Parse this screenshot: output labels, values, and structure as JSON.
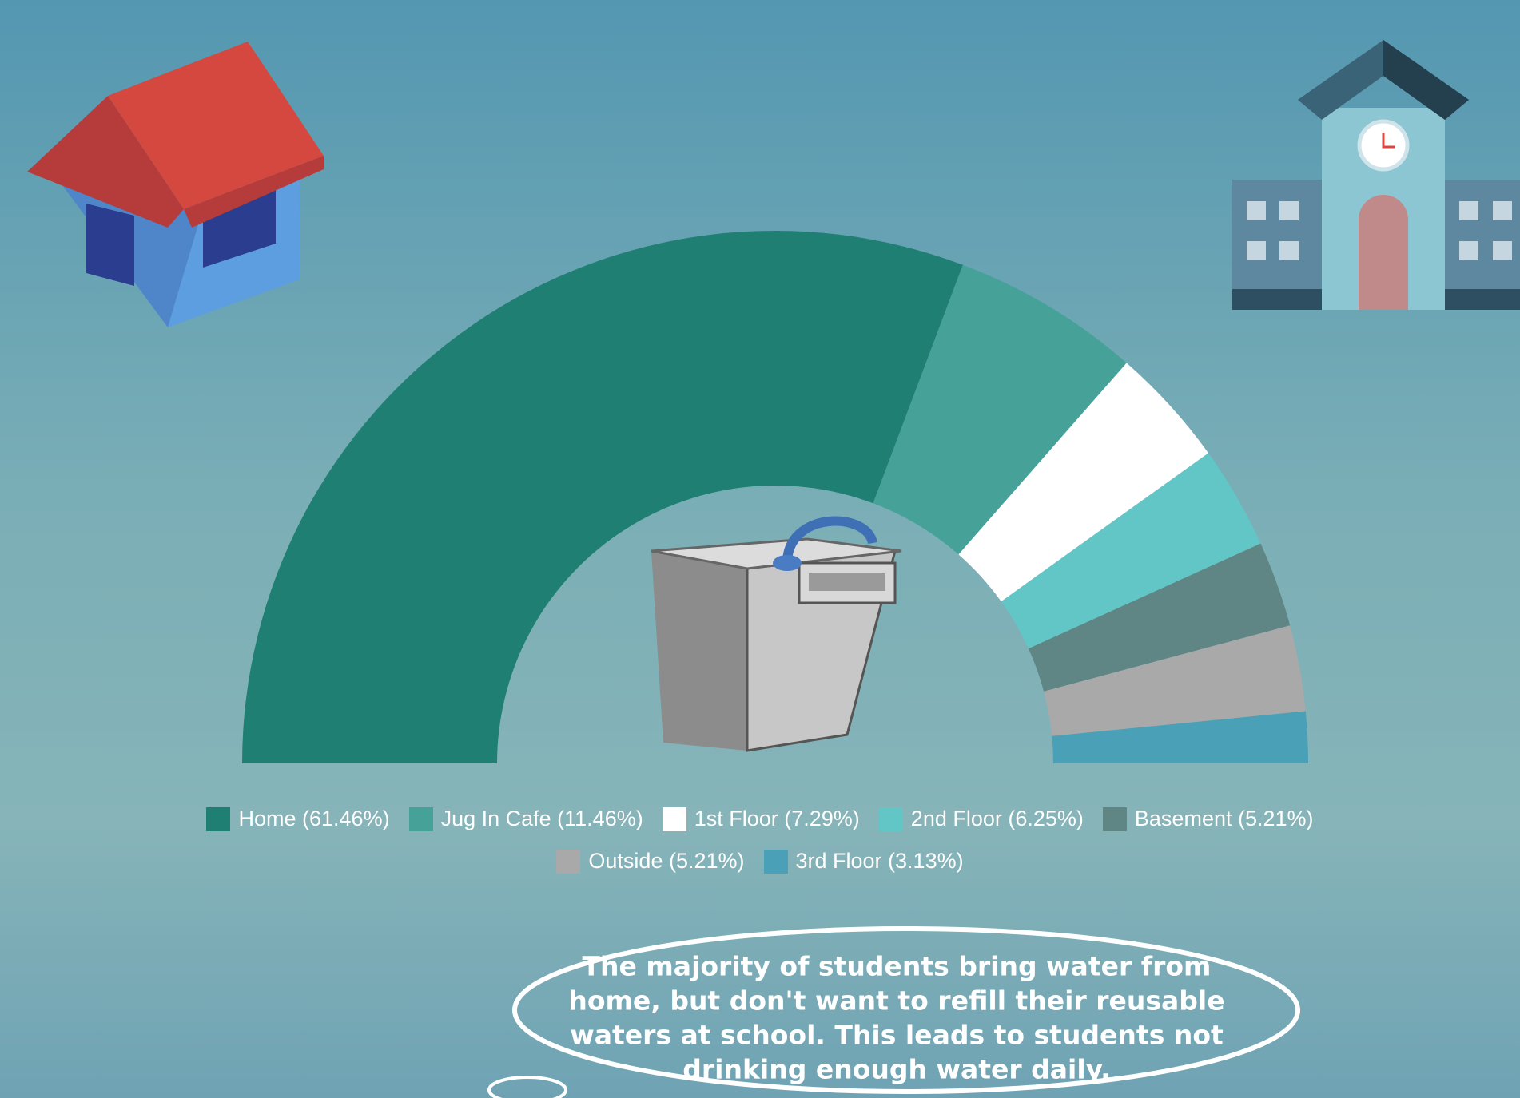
{
  "chart_data": {
    "type": "half-donut",
    "categories": [
      "Home (61.46%)",
      "Jug In Cafe (11.46%)",
      "1st Floor (7.29%)",
      "2nd Floor (6.25%)",
      "Basement (5.21%)",
      "Outside (5.21%)",
      "3rd Floor (3.13%)"
    ],
    "values": [
      61.46,
      11.46,
      7.29,
      6.25,
      5.21,
      5.21,
      3.13
    ],
    "colors": [
      "#207f73",
      "#46a199",
      "#ffffff",
      "#62c5c6",
      "#5f8585",
      "#a9a9a9",
      "#4aa0b6"
    ],
    "annotation": [
      "The majority of students bring water from",
      "home, but don't want to refill their reusable",
      "waters at school. This leads to students not",
      "drinking enough water daily."
    ]
  }
}
